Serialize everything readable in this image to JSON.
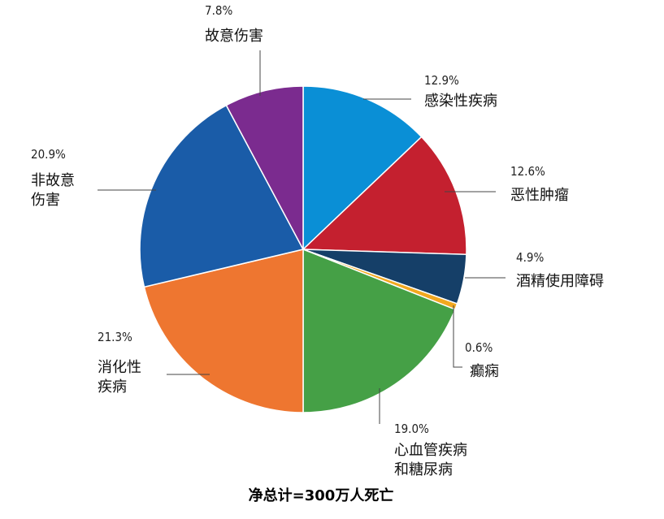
{
  "chart_data": {
    "type": "pie",
    "total_label": "净总计=300万人死亡",
    "slices": [
      {
        "label_lines": [
          "感染性疾病"
        ],
        "value": 12.9,
        "pct_text": "12.9%",
        "color": "#0a8fd6"
      },
      {
        "label_lines": [
          "恶性肿瘤"
        ],
        "value": 12.6,
        "pct_text": "12.6%",
        "color": "#c4202f"
      },
      {
        "label_lines": [
          "酒精使用障碍"
        ],
        "value": 4.9,
        "pct_text": "4.9%",
        "color": "#153f68"
      },
      {
        "label_lines": [
          "癫痫"
        ],
        "value": 0.6,
        "pct_text": "0.6%",
        "color": "#f2a81f"
      },
      {
        "label_lines": [
          "心血管疾病",
          "和糖尿病"
        ],
        "value": 19.0,
        "pct_text": "19.0%",
        "color": "#45a046"
      },
      {
        "label_lines": [
          "消化性",
          "疾病"
        ],
        "value": 21.3,
        "pct_text": "21.3%",
        "color": "#ee7630"
      },
      {
        "label_lines": [
          "非故意",
          "伤害"
        ],
        "value": 20.9,
        "pct_text": "20.9%",
        "color": "#1a5ca8"
      },
      {
        "label_lines": [
          "故意伤害"
        ],
        "value": 7.8,
        "pct_text": "7.8%",
        "color": "#7b2b8f"
      }
    ]
  }
}
